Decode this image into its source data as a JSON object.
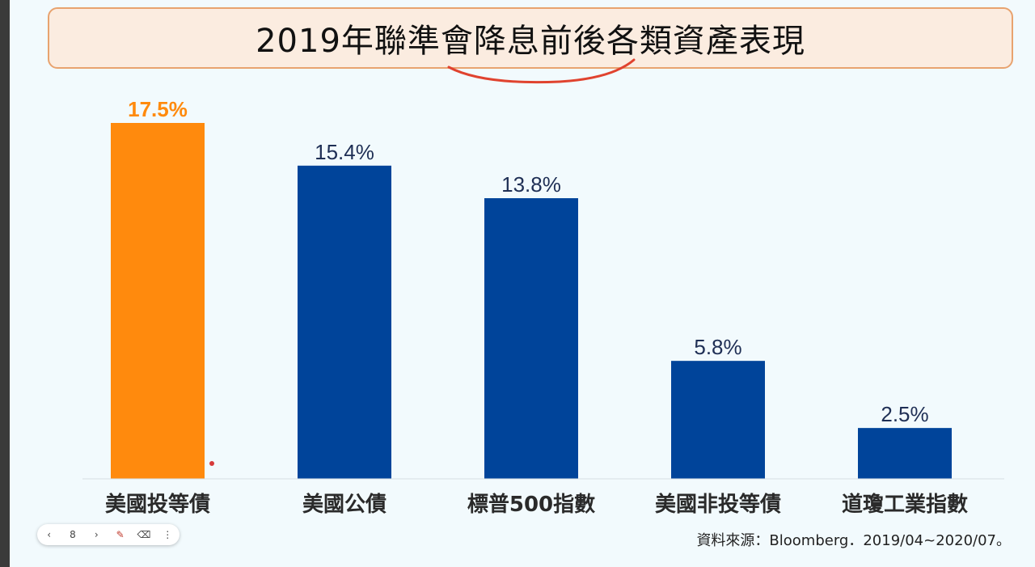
{
  "slide": {
    "title": "2019年聯準會降息前後各類資產表現",
    "source": "資料來源：Bloomberg．2019/04~2020/07。"
  },
  "toolbar": {
    "prev_icon": "chevron-left-icon",
    "prev_glyph": "‹",
    "page": "8",
    "next_icon": "chevron-right-icon",
    "next_glyph": "›",
    "pen_icon": "pen-icon",
    "pen_glyph": "✎",
    "eraser_icon": "eraser-icon",
    "eraser_glyph": "⌫",
    "more_icon": "more-vertical-icon",
    "more_glyph": "⋮"
  },
  "colors": {
    "highlight_bar": "#ff8a0d",
    "highlight_label": "#ff8a0d",
    "bar": "#00449a",
    "label": "#1f2f55",
    "category": "#2a2a2a",
    "annotation_stroke": "#e0432f"
  },
  "chart_data": {
    "type": "bar",
    "title": "2019年聯準會降息前後各類資產表現",
    "categories": [
      "美國投等債",
      "美國公債",
      "標普500指數",
      "美國非投等債",
      "道瓊工業指數"
    ],
    "values": [
      17.5,
      15.4,
      13.8,
      5.8,
      2.5
    ],
    "data_labels": [
      "17.5%",
      "15.4%",
      "13.8%",
      "5.8%",
      "2.5%"
    ],
    "highlight_index": 0,
    "unit": "%",
    "ylim": [
      0,
      17.5
    ],
    "grid": false,
    "legend": "none"
  }
}
